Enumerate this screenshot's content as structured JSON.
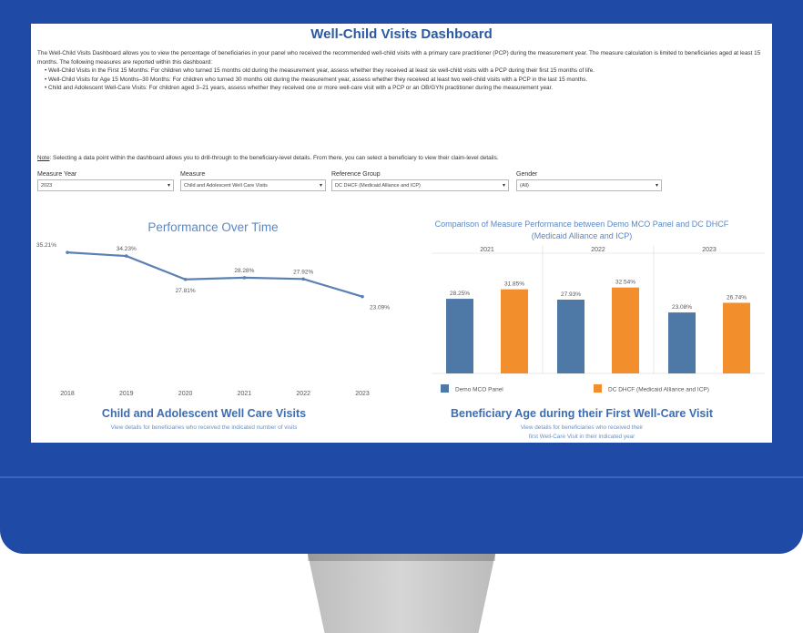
{
  "dashboard": {
    "title": "Well-Child Visits Dashboard",
    "intro": "The Well-Child Visits Dashboard allows you to view the percentage of beneficiaries in your panel who received the recommended well-child visits with a primary care practitioner (PCP) during the measurement year. The measure calculation is limited to beneficiaries aged at least 15 months. The following measures are reported within this dashboard:",
    "bullets": [
      "Well-Child Visits in the First 15 Months: For children who turned 15 months old  during the measurement year, assess whether they received at least six well-child visits with a PCP during their first 15 months of life.",
      "Well-Child Visits for Age 15 Months–30 Months: For children who turned 30 months old during the measurement year, assess whether they received at least two well-child visits with a PCP in the last 15 months.",
      "Child and Adolescent Well-Care Visits: For children aged 3–21 years, assess whether they received one or more well-care visit with a PCP or an OB/GYN practitioner during the measurement  year."
    ],
    "note_label": "Note",
    "note_text": ": Selecting a data point within the dashboard allows you to drill-through to the beneficiary-level details. From there, you can select a beneficiary to view their claim-level details."
  },
  "filters": [
    {
      "label": "Measure Year",
      "value": "2023"
    },
    {
      "label": "Measure",
      "value": "Child and Adolescent Well Care Visits"
    },
    {
      "label": "Reference Group",
      "value": "DC DHCF (Medicaid Alliance and ICP)"
    },
    {
      "label": "Gender",
      "value": "(All)"
    }
  ],
  "performance": {
    "title": "Performance Over Time"
  },
  "comparison": {
    "title": "Comparison of Measure Performance between Demo MCO Panel and DC DHCF (Medicaid Alliance and ICP)"
  },
  "bottom": {
    "left_title": "Child and Adolescent Well Care Visits",
    "left_subtitle": "View details for beneficiaries who received the indicated number of visits",
    "right_title": "Beneficiary Age during their First Well-Care Visit",
    "right_subtitle_1": "View details for beneficiaries who received their",
    "right_subtitle_2": "first Well-Care Visit in their indicated year"
  },
  "colors": {
    "monitor": "#1f4aa6",
    "line": "#5b80b3",
    "demo": "#4e79a7",
    "dhcf": "#f28e2b",
    "title_blue": "#2b5aa3"
  },
  "chart_data": [
    {
      "type": "line",
      "title": "Performance Over Time",
      "x": [
        "2018",
        "2019",
        "2020",
        "2021",
        "2022",
        "2023"
      ],
      "series": [
        {
          "values": [
            35.21,
            34.23,
            27.81,
            28.28,
            27.92,
            23.09
          ],
          "labels": [
            "35.21%",
            "34.23%",
            "27.81%",
            "28.28%",
            "27.92%",
            "23.09%"
          ]
        }
      ],
      "ylim": [
        0,
        40
      ]
    },
    {
      "type": "bar",
      "title": "Comparison of Measure Performance between Demo MCO Panel and DC DHCF (Medicaid Alliance and ICP)",
      "categories": [
        "2021",
        "2022",
        "2023"
      ],
      "series": [
        {
          "name": "Demo MCO Panel",
          "values": [
            28.25,
            27.93,
            23.08
          ],
          "labels": [
            "28.25%",
            "27.93%",
            "23.08%"
          ]
        },
        {
          "name": "DC DHCF (Medicaid Alliance and ICP)",
          "values": [
            31.85,
            32.54,
            26.74
          ],
          "labels": [
            "31.85%",
            "32.54%",
            "26.74%"
          ]
        }
      ],
      "ylim": [
        0,
        40
      ],
      "legend": "bottom"
    }
  ]
}
